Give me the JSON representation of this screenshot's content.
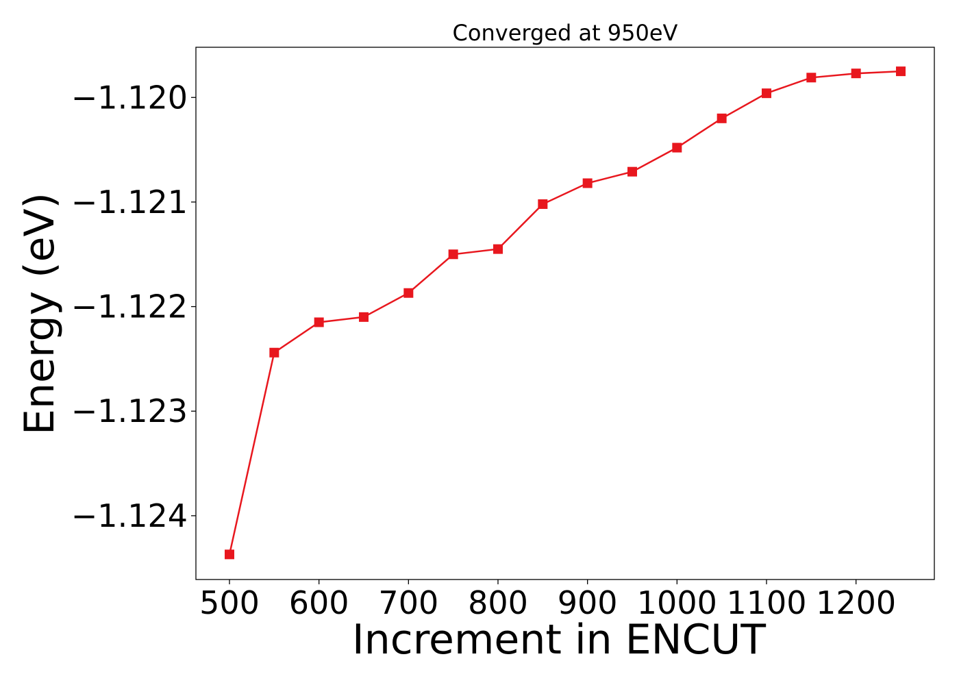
{
  "chart_data": {
    "type": "line",
    "title": "Converged at 950eV",
    "xlabel": "Increment in ENCUT",
    "ylabel": "Energy (eV)",
    "x": [
      500,
      550,
      600,
      650,
      700,
      750,
      800,
      850,
      900,
      950,
      1000,
      1050,
      1100,
      1150,
      1200,
      1250
    ],
    "series": [
      {
        "values": [
          -1.12437,
          -1.12244,
          -1.12215,
          -1.1221,
          -1.12187,
          -1.1215,
          -1.12145,
          -1.12102,
          -1.12082,
          -1.12071,
          -1.12048,
          -1.1202,
          -1.11996,
          -1.11981,
          -1.11977,
          -1.11975
        ],
        "color": "#e8171e",
        "marker": "square"
      }
    ],
    "xticks": [
      500,
      600,
      700,
      800,
      900,
      1000,
      1100,
      1200
    ],
    "xtick_labels": [
      "500",
      "600",
      "700",
      "800",
      "900",
      "1000",
      "1100",
      "1200"
    ],
    "yticks": [
      -1.124,
      -1.123,
      -1.122,
      -1.121,
      -1.12
    ],
    "ytick_labels": [
      "−1.124",
      "−1.123",
      "−1.122",
      "−1.121",
      "−1.120"
    ],
    "xlim": [
      462.5,
      1287.5
    ],
    "ylim": [
      -1.12461,
      -1.11952
    ],
    "grid": false,
    "legend": false
  }
}
